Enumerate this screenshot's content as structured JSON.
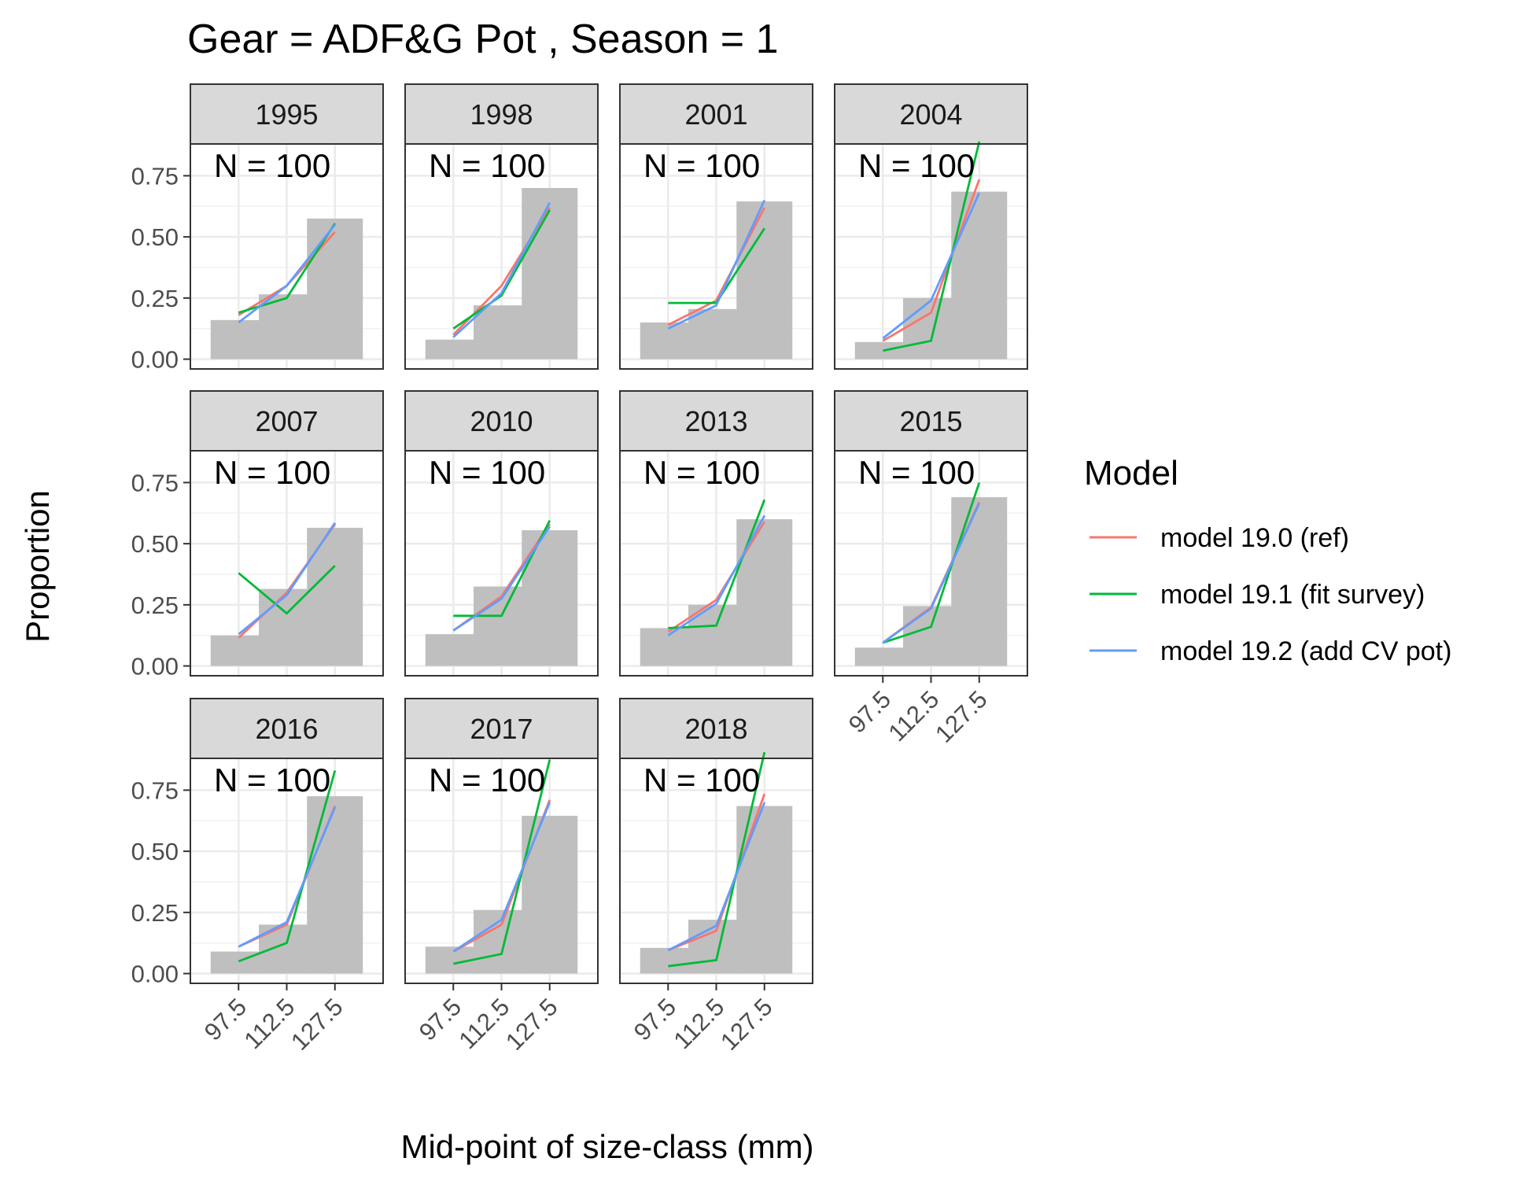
{
  "chart_data": {
    "type": "bar+line facet",
    "title": "Gear = ADF&G Pot , Season = 1",
    "xlabel": "Mid-point of size-class (mm)",
    "ylabel": "Proportion",
    "x_ticks": [
      "97.5",
      "112.5",
      "127.5"
    ],
    "y_ticks": [
      "0.00",
      "0.25",
      "0.50",
      "0.75"
    ],
    "ylim": [
      0,
      0.88
    ],
    "legend": {
      "title": "Model",
      "position": "right",
      "series": [
        {
          "name": "model 19.0 (ref)",
          "color": "#F8766D"
        },
        {
          "name": "model 19.1 (fit survey)",
          "color": "#00BA38"
        },
        {
          "name": "model 19.2 (add CV pot)",
          "color": "#619CFF"
        }
      ]
    },
    "bar_color": "#bfbfbf",
    "panels": [
      {
        "year": "1995",
        "n_label": "N = 100",
        "observed": [
          0.16,
          0.265,
          0.575
        ],
        "models": [
          [
            0.18,
            0.3,
            0.52
          ],
          [
            0.19,
            0.25,
            0.555
          ],
          [
            0.15,
            0.3,
            0.55
          ]
        ]
      },
      {
        "year": "1998",
        "n_label": "N = 100",
        "observed": [
          0.08,
          0.22,
          0.7
        ],
        "models": [
          [
            0.1,
            0.3,
            0.62
          ],
          [
            0.125,
            0.26,
            0.61
          ],
          [
            0.09,
            0.27,
            0.64
          ]
        ]
      },
      {
        "year": "2001",
        "n_label": "N = 100",
        "observed": [
          0.15,
          0.205,
          0.645
        ],
        "models": [
          [
            0.14,
            0.24,
            0.62
          ],
          [
            0.23,
            0.23,
            0.535
          ],
          [
            0.125,
            0.22,
            0.65
          ]
        ]
      },
      {
        "year": "2004",
        "n_label": "N = 100",
        "observed": [
          0.07,
          0.25,
          0.685
        ],
        "models": [
          [
            0.075,
            0.19,
            0.735
          ],
          [
            0.035,
            0.075,
            0.89
          ],
          [
            0.085,
            0.24,
            0.68
          ]
        ]
      },
      {
        "year": "2007",
        "n_label": "N = 100",
        "observed": [
          0.125,
          0.315,
          0.565
        ],
        "models": [
          [
            0.115,
            0.3,
            0.58
          ],
          [
            0.38,
            0.215,
            0.41
          ],
          [
            0.13,
            0.29,
            0.585
          ]
        ]
      },
      {
        "year": "2010",
        "n_label": "N = 100",
        "observed": [
          0.13,
          0.325,
          0.555
        ],
        "models": [
          [
            0.145,
            0.285,
            0.58
          ],
          [
            0.205,
            0.205,
            0.595
          ],
          [
            0.145,
            0.275,
            0.57
          ]
        ]
      },
      {
        "year": "2013",
        "n_label": "N = 100",
        "observed": [
          0.155,
          0.25,
          0.6
        ],
        "models": [
          [
            0.14,
            0.27,
            0.59
          ],
          [
            0.155,
            0.165,
            0.68
          ],
          [
            0.125,
            0.255,
            0.615
          ]
        ]
      },
      {
        "year": "2015",
        "n_label": "N = 100",
        "observed": [
          0.075,
          0.245,
          0.69
        ],
        "models": [
          [
            0.095,
            0.24,
            0.67
          ],
          [
            0.095,
            0.16,
            0.75
          ],
          [
            0.095,
            0.235,
            0.665
          ]
        ]
      },
      {
        "year": "2016",
        "n_label": "N = 100",
        "observed": [
          0.09,
          0.2,
          0.725
        ],
        "models": [
          [
            0.11,
            0.2,
            0.685
          ],
          [
            0.05,
            0.125,
            0.83
          ],
          [
            0.11,
            0.21,
            0.68
          ]
        ]
      },
      {
        "year": "2017",
        "n_label": "N = 100",
        "observed": [
          0.11,
          0.26,
          0.645
        ],
        "models": [
          [
            0.09,
            0.2,
            0.71
          ],
          [
            0.04,
            0.08,
            0.875
          ],
          [
            0.09,
            0.22,
            0.7
          ]
        ]
      },
      {
        "year": "2018",
        "n_label": "N = 100",
        "observed": [
          0.105,
          0.22,
          0.685
        ],
        "models": [
          [
            0.095,
            0.175,
            0.735
          ],
          [
            0.03,
            0.055,
            0.905
          ],
          [
            0.095,
            0.195,
            0.7
          ]
        ]
      }
    ]
  }
}
